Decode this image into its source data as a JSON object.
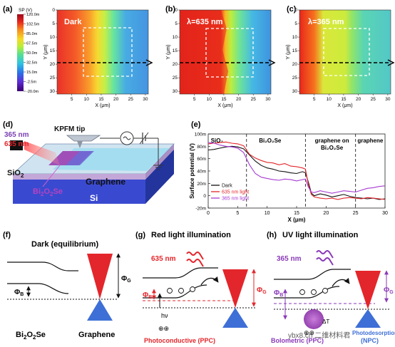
{
  "panels": {
    "a": {
      "label": "(a)",
      "corner": "Dark"
    },
    "b": {
      "label": "(b)",
      "corner": "λ=635 nm"
    },
    "c": {
      "label": "(c)",
      "corner": "λ=365 nm"
    },
    "d": {
      "label": "(d)"
    },
    "e": {
      "label": "(e)"
    },
    "f": {
      "label": "(f)",
      "title": "Dark (equilibrium)"
    },
    "g": {
      "label": "(g)",
      "title": "Red light illumination"
    },
    "h": {
      "label": "(h)",
      "title": "UV light illumination"
    }
  },
  "colorbar": {
    "title": "SP (V)",
    "ticks": [
      "120.0m",
      "102.5m",
      "85.0m",
      "67.5m",
      "50.0m",
      "32.5m",
      "15.0m",
      "-2.5m",
      "-20.0m"
    ],
    "colors": [
      "#3a0070",
      "#5e2bd3",
      "#2b72e8",
      "#2fc3e2",
      "#57e08f",
      "#b8ef37",
      "#f7d924",
      "#f78a1e",
      "#e8261d",
      "#9b0a1a"
    ]
  },
  "maps": {
    "x_ticks": [
      "5",
      "10",
      "15",
      "20",
      "25",
      "30"
    ],
    "y_ticks": [
      "0",
      "5",
      "10",
      "15",
      "20",
      "25",
      "30"
    ],
    "xlabel": "X (μm)",
    "ylabel": "Y (μm)"
  },
  "device": {
    "wavelength_uv": "365 nm",
    "wavelength_red": "635 nm",
    "tip": "KPFM tip",
    "sio2": "SiO",
    "sio2_sub": "2",
    "graphene": "Graphene",
    "bi2o2se_parts": [
      "Bi",
      "2",
      "O",
      "2",
      "Se"
    ],
    "si": "Si"
  },
  "chart_data": {
    "type": "line",
    "title": "",
    "xlabel": "X (μm)",
    "ylabel": "Surface potential (V)",
    "xlim": [
      0,
      30
    ],
    "ylim": [
      -20,
      100
    ],
    "x_ticks": [
      "0",
      "5",
      "10",
      "15",
      "20",
      "25",
      "30"
    ],
    "y_ticks": [
      "100m",
      "80m",
      "60m",
      "40m",
      "20m",
      "0",
      "-20m"
    ],
    "regions": [
      {
        "label": "SiO₂",
        "at": 1.5
      },
      {
        "label": "Bi₂O₂Se",
        "at": 10.5
      },
      {
        "label": "graphene on",
        "label2": "Bi₂O₂Se",
        "at": 21
      },
      {
        "label": "graphene",
        "at": 27.5
      }
    ],
    "dividers": [
      6.5,
      16.5,
      25
    ],
    "legend_position": "bottom-left",
    "series": [
      {
        "name": "Dark",
        "color": "#111111",
        "x": [
          0,
          1,
          2,
          3,
          4,
          5,
          6,
          7,
          8,
          9,
          10,
          11,
          12,
          13,
          14,
          15,
          16,
          16.5,
          17,
          17.5,
          18,
          19,
          20,
          21,
          22,
          23,
          24,
          25,
          26,
          27,
          28,
          29,
          30
        ],
        "y": [
          74,
          75,
          77,
          79,
          80,
          79,
          76,
          66,
          56,
          49,
          45,
          43,
          40,
          39,
          37,
          36,
          39,
          37,
          22,
          4,
          0,
          3,
          1,
          -2,
          0,
          2,
          -1,
          -3,
          -4,
          -5,
          -4,
          -6,
          -5
        ]
      },
      {
        "name": "635 nm light",
        "color": "#e3262b",
        "x": [
          0,
          1,
          2,
          3,
          4,
          5,
          6,
          7,
          8,
          9,
          10,
          11,
          12,
          13,
          14,
          15,
          16,
          16.5,
          17,
          17.5,
          18,
          19,
          20,
          21,
          22,
          23,
          24,
          25,
          26,
          27,
          28,
          29,
          30
        ],
        "y": [
          84,
          85,
          86,
          87,
          85,
          84,
          81,
          67,
          61,
          57,
          54,
          53,
          50,
          52,
          48,
          47,
          45,
          43,
          18,
          2,
          -2,
          -4,
          -5,
          -4,
          -6,
          -4,
          -3,
          -4,
          -5,
          -3,
          -4,
          -5,
          -6
        ]
      },
      {
        "name": "365 nm light",
        "color": "#a63bd1",
        "x": [
          0,
          1,
          2,
          3,
          4,
          5,
          6,
          7,
          8,
          9,
          10,
          11,
          12,
          13,
          14,
          15,
          16,
          16.5,
          17,
          17.5,
          18,
          19,
          20,
          21,
          22,
          23,
          24,
          25,
          26,
          27,
          28,
          29,
          30
        ],
        "y": [
          86,
          85,
          82,
          80,
          79,
          77,
          70,
          50,
          36,
          30,
          28,
          26,
          25,
          27,
          26,
          24,
          26,
          27,
          14,
          6,
          5,
          8,
          6,
          4,
          6,
          8,
          7,
          6,
          9,
          12,
          13,
          15,
          16
        ]
      }
    ]
  },
  "band": {
    "phi_b": "Φ",
    "phi_b_sub": "B",
    "phi_g": "Φ",
    "phi_g_sub": "G",
    "bi2o2se_parts": [
      "Bi",
      "2",
      "O",
      "2",
      "Se"
    ],
    "graphene": "Graphene",
    "red_wavelength": "635 nm",
    "uv_wavelength": "365 nm",
    "hv": "hν",
    "ppc": "Photoconductive (PPC)",
    "bolometric": "Bolometric (PPC)",
    "photodesorption_1": "Photodesorption",
    "photodesorption_2": "(NPC)",
    "delta_t": "ΔT"
  },
  "watermark": "ybx8.cn  二维材料君"
}
